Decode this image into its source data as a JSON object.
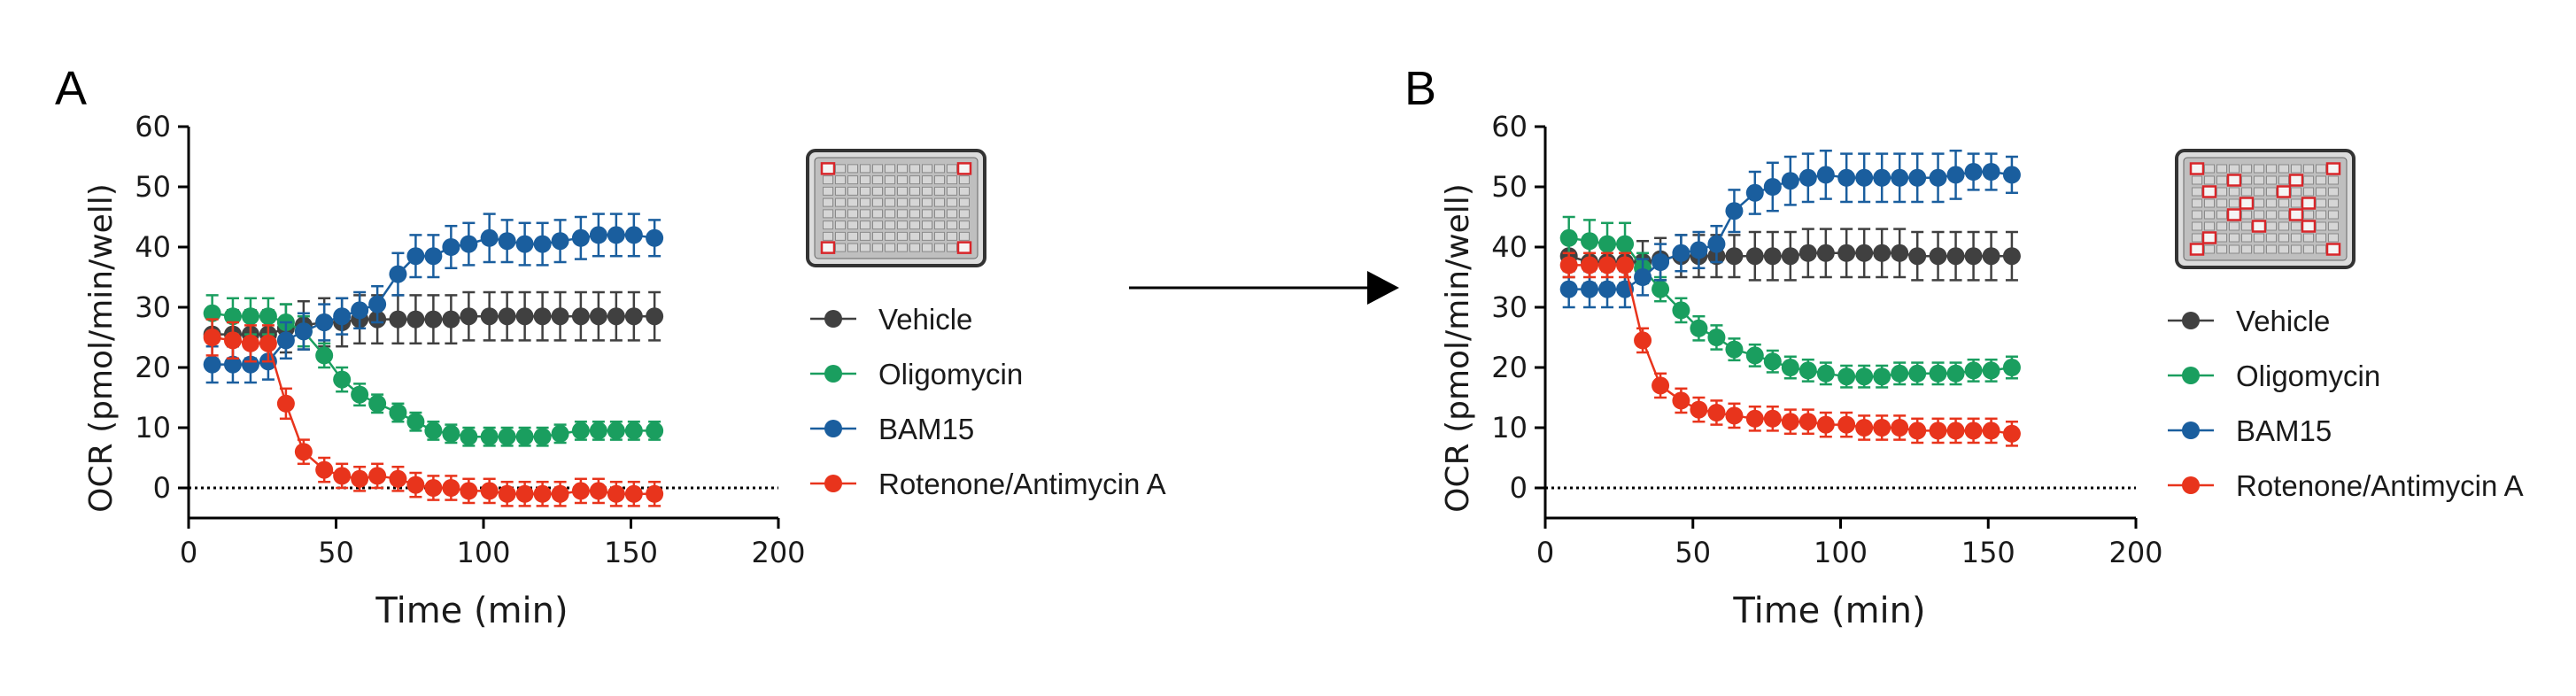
{
  "chart_data": [
    {
      "panel_label": "A",
      "type": "line",
      "xlabel": "Time (min)",
      "ylabel": "OCR (pmol/min/well)",
      "xlim": [
        0,
        200
      ],
      "ylim": [
        -5,
        60
      ],
      "x_ticks": [
        "0",
        "50",
        "100",
        "150",
        "200"
      ],
      "y_ticks": [
        "0",
        "10",
        "20",
        "30",
        "40",
        "50",
        "60"
      ],
      "reference_line": 0,
      "legend_position": "right",
      "plate_highlighted_wells": [
        "A1",
        "A12",
        "H1",
        "H12"
      ],
      "x": [
        8,
        15,
        21,
        27,
        33,
        39,
        46,
        52,
        58,
        64,
        71,
        77,
        83,
        89,
        95,
        102,
        108,
        114,
        120,
        126,
        133,
        139,
        145,
        151,
        158
      ],
      "series": [
        {
          "name": "Vehicle",
          "color": "#404040",
          "values": [
            25.5,
            25.5,
            25.5,
            25.5,
            26.5,
            27,
            27.5,
            27.5,
            28,
            28,
            28,
            28,
            28,
            28,
            28.5,
            28.5,
            28.5,
            28.5,
            28.5,
            28.5,
            28.5,
            28.5,
            28.5,
            28.5,
            28.5
          ],
          "errors": [
            4,
            4,
            4,
            4,
            4,
            4,
            4,
            4,
            4,
            4,
            4,
            4,
            4,
            4,
            4,
            4,
            4,
            4,
            4,
            4,
            4,
            4,
            4,
            4,
            4
          ]
        },
        {
          "name": "Oligomycin",
          "color": "#1a9e5f",
          "values": [
            29,
            28.5,
            28.5,
            28.5,
            27.5,
            26,
            22,
            18,
            15.5,
            14,
            12.5,
            11,
            9.5,
            9,
            8.5,
            8.5,
            8.5,
            8.5,
            8.5,
            9,
            9.5,
            9.5,
            9.5,
            9.5,
            9.5
          ],
          "errors": [
            3,
            3,
            3,
            3,
            3,
            2.5,
            2,
            2,
            1.8,
            1.5,
            1.5,
            1.5,
            1.5,
            1.5,
            1.5,
            1.5,
            1.5,
            1.5,
            1.5,
            1.5,
            1.5,
            1.5,
            1.5,
            1.5,
            1.5
          ]
        },
        {
          "name": "BAM15",
          "color": "#1a5e9e",
          "values": [
            20.5,
            20.5,
            20.5,
            21,
            24.5,
            26,
            27.5,
            28.5,
            29.5,
            30.5,
            35.5,
            38.5,
            38.5,
            40,
            40.5,
            41.5,
            41,
            40.5,
            40.5,
            41,
            41.5,
            42,
            42,
            42,
            41.5
          ],
          "errors": [
            3,
            3,
            3,
            3,
            3,
            3,
            3,
            3,
            3,
            3,
            3.5,
            3.5,
            3.5,
            3.5,
            3.5,
            4,
            3.5,
            3.5,
            3.5,
            3.5,
            3.5,
            3.5,
            3.5,
            3.5,
            3
          ]
        },
        {
          "name": "Rotenone/Antimycin A",
          "color": "#e8341c",
          "values": [
            25,
            24.5,
            24,
            24,
            14,
            6,
            3,
            2,
            1.5,
            2,
            1.5,
            0.5,
            0,
            0,
            -0.5,
            -0.5,
            -1,
            -1,
            -1,
            -1,
            -0.5,
            -0.5,
            -1,
            -1,
            -1
          ],
          "errors": [
            3,
            3,
            3,
            3,
            2.5,
            2,
            2,
            2,
            2,
            2,
            2,
            2,
            2,
            2,
            2,
            2,
            2,
            2,
            2,
            2,
            2,
            2,
            2,
            2,
            2
          ]
        }
      ]
    },
    {
      "panel_label": "B",
      "type": "line",
      "xlabel": "Time (min)",
      "ylabel": "OCR (pmol/min/well)",
      "xlim": [
        0,
        200
      ],
      "ylim": [
        -5,
        60
      ],
      "x_ticks": [
        "0",
        "50",
        "100",
        "150",
        "200"
      ],
      "y_ticks": [
        "0",
        "10",
        "20",
        "30",
        "40",
        "50",
        "60"
      ],
      "reference_line": 0,
      "legend_position": "right",
      "plate_highlighted_wells": [
        "A1",
        "A12",
        "H1",
        "H12",
        "C2",
        "B4",
        "E4",
        "D5",
        "F6",
        "C8",
        "B9",
        "E9",
        "D10",
        "F10",
        "G2"
      ],
      "x": [
        8,
        15,
        21,
        27,
        33,
        39,
        46,
        52,
        58,
        64,
        71,
        77,
        83,
        89,
        95,
        102,
        108,
        114,
        120,
        126,
        133,
        139,
        145,
        151,
        158
      ],
      "series": [
        {
          "name": "Vehicle",
          "color": "#404040",
          "values": [
            38.5,
            37.5,
            37.5,
            37.5,
            37.5,
            38,
            38.5,
            38.5,
            38.5,
            38.5,
            38.5,
            38.5,
            38.5,
            39,
            39,
            39,
            39,
            39,
            39,
            38.5,
            38.5,
            38.5,
            38.5,
            38.5,
            38.5
          ],
          "errors": [
            3.5,
            3.5,
            3.5,
            3.5,
            3.5,
            3.5,
            3.5,
            3.5,
            3.5,
            3.5,
            4,
            4,
            4,
            4,
            4,
            4,
            4,
            4,
            4,
            4,
            4,
            4,
            4,
            4,
            4
          ]
        },
        {
          "name": "Oligomycin",
          "color": "#1a9e5f",
          "values": [
            41.5,
            41,
            40.5,
            40.5,
            36.5,
            33,
            29.5,
            26.5,
            25,
            23,
            22,
            21,
            20,
            19.5,
            19,
            18.5,
            18.5,
            18.5,
            19,
            19,
            19,
            19,
            19.5,
            19.5,
            20
          ],
          "errors": [
            3.5,
            3.5,
            3.5,
            3.5,
            2.5,
            2,
            2,
            2,
            2,
            1.8,
            1.8,
            1.8,
            1.8,
            1.8,
            1.8,
            1.8,
            1.8,
            1.8,
            1.8,
            1.8,
            1.8,
            1.8,
            1.8,
            1.8,
            1.8
          ]
        },
        {
          "name": "BAM15",
          "color": "#1a5e9e",
          "values": [
            33,
            33,
            33,
            33,
            35,
            37.5,
            39,
            39.5,
            40.5,
            46,
            49,
            50,
            51,
            51.5,
            52,
            51.5,
            51.5,
            51.5,
            51.5,
            51.5,
            51.5,
            52,
            52.5,
            52.5,
            52
          ],
          "errors": [
            3,
            3,
            3,
            3,
            3,
            3,
            3,
            3,
            3,
            3.5,
            3.5,
            4,
            4,
            4,
            4,
            4,
            4,
            4,
            4,
            4,
            4,
            4,
            3,
            3,
            3
          ]
        },
        {
          "name": "Rotenone/Antimycin A",
          "color": "#e8341c",
          "values": [
            37,
            37,
            37,
            37,
            24.5,
            17,
            14.5,
            13,
            12.5,
            12,
            11.5,
            11.5,
            11,
            11,
            10.5,
            10.5,
            10,
            10,
            10,
            9.5,
            9.5,
            9.5,
            9.5,
            9.5,
            9
          ],
          "errors": [
            2,
            2,
            2,
            2,
            2,
            2,
            2,
            2,
            2,
            2,
            2,
            2,
            2,
            2,
            2,
            2,
            2,
            2,
            2,
            2,
            2,
            2,
            2,
            2,
            2
          ]
        }
      ]
    }
  ]
}
